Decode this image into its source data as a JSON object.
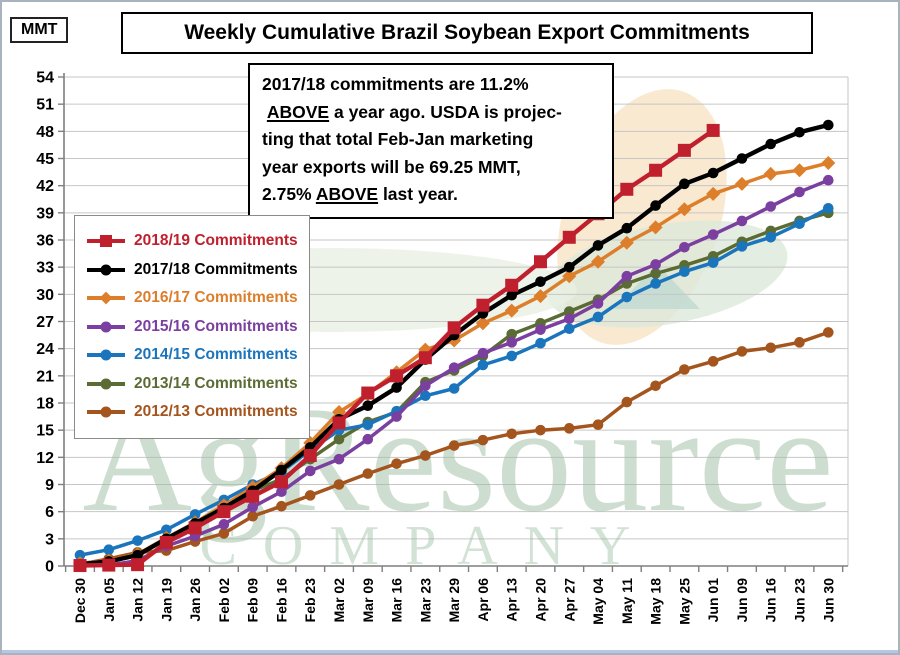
{
  "window": {
    "units_label": "MMT",
    "title": "Weekly Cumulative Brazil Soybean Export Commitments"
  },
  "annotation": {
    "lines": [
      "2017/18 commitments are 11.2%",
      " ABOVE a year ago. USDA is projec-",
      "ting that total Feb-Jan marketing",
      "year exports will be 69.25 MMT,",
      "2.75% ABOVE last year."
    ],
    "underline_word": "ABOVE"
  },
  "watermark": {
    "line1": "AgResource",
    "line2": "COMPANY",
    "color": "#9DBFA4"
  },
  "chart_data": {
    "type": "line",
    "title": "Weekly Cumulative Brazil Soybean Export Commitments",
    "ylabel": "MMT",
    "xlabel": "",
    "ylim": [
      0,
      54
    ],
    "ytick_step": 3,
    "grid": true,
    "legend_position": "upper-left",
    "categories": [
      "Dec 30",
      "Jan 05",
      "Jan 12",
      "Jan 19",
      "Jan 26",
      "Feb 02",
      "Feb 09",
      "Feb 16",
      "Feb 23",
      "Mar 02",
      "Mar 09",
      "Mar 16",
      "Mar 23",
      "Mar 29",
      "Apr 06",
      "Apr 13",
      "Apr 20",
      "Apr 27",
      "May 04",
      "May 11",
      "May 18",
      "May 25",
      "Jun 01",
      "Jun 09",
      "Jun 16",
      "Jun 23",
      "Jun 30"
    ],
    "series": [
      {
        "name": "2012/13 Commitments",
        "color": "#A4541D",
        "marker": "circle",
        "values": [
          0.2,
          0.8,
          1.5,
          1.7,
          2.7,
          3.6,
          5.5,
          6.6,
          7.8,
          9.0,
          10.2,
          11.3,
          12.2,
          13.3,
          13.9,
          14.6,
          15.0,
          15.2,
          15.6,
          18.1,
          19.9,
          21.7,
          22.6,
          23.7,
          24.1,
          24.7,
          25.8
        ]
      },
      {
        "name": "2013/14 Commitments",
        "color": "#5A6B33",
        "marker": "circle",
        "values": [
          0.15,
          0.6,
          1.3,
          2.9,
          4.6,
          6.3,
          8.3,
          9.6,
          11.8,
          14.0,
          15.9,
          17.0,
          20.3,
          21.6,
          23.2,
          25.6,
          26.8,
          28.1,
          29.4,
          31.2,
          32.3,
          33.2,
          34.2,
          35.8,
          37.0,
          38.1,
          39.0
        ]
      },
      {
        "name": "2014/15 Commitments",
        "color": "#1B75BC",
        "marker": "circle",
        "values": [
          1.2,
          1.8,
          2.8,
          4.0,
          5.7,
          7.3,
          9.0,
          10.4,
          12.8,
          15.0,
          15.6,
          17.1,
          18.8,
          19.6,
          22.2,
          23.2,
          24.6,
          26.2,
          27.5,
          29.7,
          31.2,
          32.5,
          33.5,
          35.3,
          36.3,
          37.8,
          39.5
        ]
      },
      {
        "name": "2015/16 Commitments",
        "color": "#7B3FA0",
        "marker": "circle",
        "values": [
          0.05,
          0.1,
          0.6,
          2.2,
          3.3,
          4.6,
          6.5,
          8.2,
          10.5,
          11.8,
          14.0,
          16.5,
          19.9,
          21.9,
          23.5,
          24.7,
          26.1,
          27.3,
          29.0,
          32.0,
          33.3,
          35.2,
          36.6,
          38.1,
          39.7,
          41.3,
          42.6
        ]
      },
      {
        "name": "2016/17 Commitments",
        "color": "#DD7E2B",
        "marker": "diamond",
        "values": [
          0.3,
          0.6,
          1.3,
          3.1,
          4.8,
          6.7,
          8.7,
          10.8,
          13.6,
          17.0,
          19.0,
          21.4,
          23.9,
          24.9,
          26.8,
          28.2,
          29.8,
          32.0,
          33.6,
          35.7,
          37.4,
          39.4,
          41.1,
          42.2,
          43.3,
          43.7,
          44.5
        ]
      },
      {
        "name": "2017/18 Commitments",
        "color": "#000000",
        "marker": "circle",
        "values": [
          0.2,
          0.5,
          1.2,
          3.0,
          4.7,
          6.4,
          8.3,
          10.6,
          13.1,
          16.2,
          17.7,
          19.7,
          22.8,
          25.5,
          27.9,
          29.9,
          31.4,
          33.0,
          35.4,
          37.3,
          39.8,
          42.2,
          43.4,
          45.0,
          46.6,
          47.9,
          48.7
        ]
      },
      {
        "name": "2018/19 Commitments",
        "color": "#C0202E",
        "marker": "square",
        "values": [
          0.05,
          0.1,
          0.15,
          2.6,
          4.2,
          6.0,
          7.7,
          9.3,
          12.2,
          15.8,
          19.1,
          21.0,
          23.0,
          26.3,
          28.8,
          31.0,
          33.6,
          36.3,
          38.9,
          41.6,
          43.7,
          45.9,
          48.1,
          null,
          null,
          null,
          null
        ]
      }
    ],
    "legend_order": [
      "2018/19 Commitments",
      "2017/18 Commitments",
      "2016/17 Commitments",
      "2015/16 Commitments",
      "2014/15 Commitments",
      "2013/14 Commitments",
      "2012/13 Commitments"
    ]
  }
}
